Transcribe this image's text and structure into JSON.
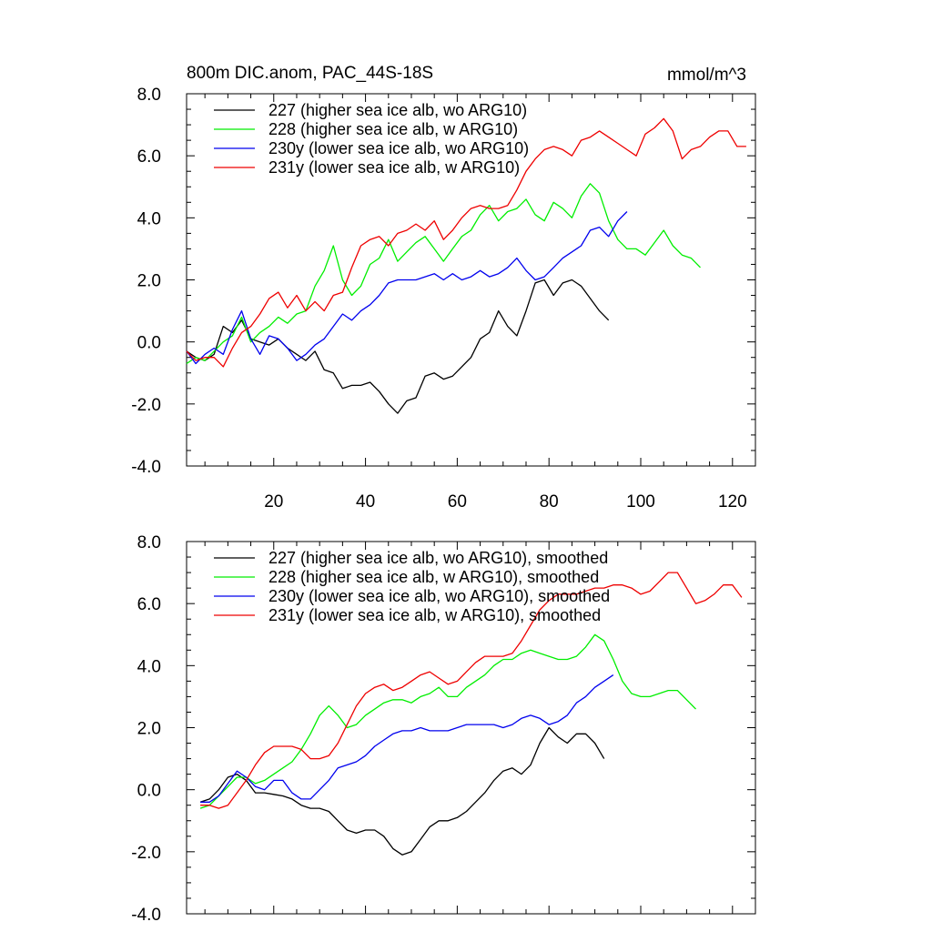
{
  "chart_data": [
    {
      "type": "line",
      "title": "800m DIC.anom, PAC_44S-18S",
      "units": "mmol/m^3",
      "ylim": [
        -4.0,
        8.0
      ],
      "xlim": [
        1,
        125
      ],
      "yticks": [
        -4.0,
        -2.0,
        0.0,
        2.0,
        4.0,
        6.0,
        8.0
      ],
      "ytick_labels": [
        "-4.0",
        "-2.0",
        "0.0",
        "2.0",
        "4.0",
        "6.0",
        "8.0"
      ],
      "xticks": [
        20,
        40,
        60,
        80,
        100,
        120
      ],
      "xtick_labels": [
        "20",
        "40",
        "60",
        "80",
        "100",
        "120"
      ],
      "legend_position": "top-left",
      "series": [
        {
          "name": "227 (higher sea ice alb, wo ARG10)",
          "color": "#000000",
          "x": [
            1,
            3,
            5,
            7,
            9,
            11,
            13,
            15,
            17,
            19,
            21,
            23,
            25,
            27,
            29,
            31,
            33,
            35,
            37,
            39,
            41,
            43,
            45,
            47,
            49,
            51,
            53,
            55,
            57,
            59,
            61,
            63,
            65,
            67,
            69,
            71,
            73,
            75,
            77,
            79,
            81,
            83,
            85,
            87,
            89,
            91,
            93
          ],
          "y": [
            -0.3,
            -0.5,
            -0.6,
            -0.4,
            0.5,
            0.3,
            0.7,
            0.1,
            0.0,
            -0.1,
            0.1,
            -0.2,
            -0.4,
            -0.6,
            -0.3,
            -0.9,
            -1.0,
            -1.5,
            -1.4,
            -1.4,
            -1.3,
            -1.6,
            -2.0,
            -2.3,
            -1.9,
            -1.8,
            -1.1,
            -1.0,
            -1.2,
            -1.1,
            -0.8,
            -0.5,
            0.1,
            0.3,
            1.0,
            0.5,
            0.2,
            1.0,
            1.9,
            2.0,
            1.5,
            1.9,
            2.0,
            1.8,
            1.4,
            1.0,
            0.7
          ]
        },
        {
          "name": "228 (higher sea ice alb, w ARG10)",
          "color": "#00ee00",
          "x": [
            1,
            3,
            5,
            7,
            9,
            11,
            13,
            15,
            17,
            19,
            21,
            23,
            25,
            27,
            29,
            31,
            33,
            35,
            37,
            39,
            41,
            43,
            45,
            47,
            49,
            51,
            53,
            55,
            57,
            59,
            61,
            63,
            65,
            67,
            69,
            71,
            73,
            75,
            77,
            79,
            81,
            83,
            85,
            87,
            89,
            91,
            93,
            95,
            97,
            99,
            101,
            103,
            105,
            107,
            109,
            111,
            113
          ],
          "y": [
            -0.7,
            -0.5,
            -0.6,
            -0.3,
            0.0,
            0.2,
            0.8,
            0.0,
            0.3,
            0.5,
            0.8,
            0.6,
            0.9,
            1.0,
            1.8,
            2.3,
            3.1,
            2.0,
            1.5,
            1.8,
            2.5,
            2.7,
            3.3,
            2.6,
            2.9,
            3.2,
            3.4,
            3.0,
            2.6,
            3.0,
            3.4,
            3.6,
            4.1,
            4.4,
            3.9,
            4.2,
            4.3,
            4.6,
            4.1,
            3.9,
            4.5,
            4.3,
            4.0,
            4.7,
            5.1,
            4.8,
            3.9,
            3.3,
            3.0,
            3.0,
            2.8,
            3.2,
            3.6,
            3.1,
            2.8,
            2.7,
            2.4
          ]
        },
        {
          "name": "230y (lower sea ice alb, wo ARG10)",
          "color": "#0000ee",
          "x": [
            1,
            3,
            5,
            7,
            9,
            11,
            13,
            15,
            17,
            19,
            21,
            23,
            25,
            27,
            29,
            31,
            33,
            35,
            37,
            39,
            41,
            43,
            45,
            47,
            49,
            51,
            53,
            55,
            57,
            59,
            61,
            63,
            65,
            67,
            69,
            71,
            73,
            75,
            77,
            79,
            81,
            83,
            85,
            87,
            89,
            91,
            93,
            95,
            97
          ],
          "y": [
            -0.3,
            -0.7,
            -0.4,
            -0.2,
            -0.4,
            0.4,
            1.0,
            0.1,
            -0.4,
            0.2,
            0.1,
            -0.2,
            -0.6,
            -0.4,
            -0.1,
            0.1,
            0.5,
            0.9,
            0.7,
            1.0,
            1.2,
            1.5,
            1.9,
            2.0,
            2.0,
            2.0,
            2.1,
            2.2,
            2.0,
            2.2,
            2.0,
            2.1,
            2.3,
            2.1,
            2.2,
            2.4,
            2.7,
            2.3,
            2.0,
            2.1,
            2.4,
            2.7,
            2.9,
            3.1,
            3.6,
            3.7,
            3.4,
            3.9,
            4.2
          ]
        },
        {
          "name": "231y (lower sea ice alb, w ARG10)",
          "color": "#ee0000",
          "x": [
            1,
            3,
            5,
            7,
            9,
            11,
            13,
            15,
            17,
            19,
            21,
            23,
            25,
            27,
            29,
            31,
            33,
            35,
            37,
            39,
            41,
            43,
            45,
            47,
            49,
            51,
            53,
            55,
            57,
            59,
            61,
            63,
            65,
            67,
            69,
            71,
            73,
            75,
            77,
            79,
            81,
            83,
            85,
            87,
            89,
            91,
            93,
            95,
            97,
            99,
            101,
            103,
            105,
            107,
            109,
            111,
            113,
            115,
            117,
            119,
            121,
            123
          ],
          "y": [
            -0.3,
            -0.6,
            -0.5,
            -0.5,
            -0.8,
            -0.2,
            0.3,
            0.5,
            0.9,
            1.4,
            1.6,
            1.1,
            1.5,
            1.0,
            1.3,
            1.0,
            1.5,
            1.6,
            2.4,
            3.1,
            3.3,
            3.4,
            3.1,
            3.5,
            3.6,
            3.8,
            3.6,
            3.9,
            3.3,
            3.6,
            4.0,
            4.3,
            4.4,
            4.3,
            4.3,
            4.4,
            4.9,
            5.5,
            5.9,
            6.2,
            6.3,
            6.2,
            6.0,
            6.5,
            6.6,
            6.8,
            6.6,
            6.4,
            6.2,
            6.0,
            6.7,
            6.9,
            7.2,
            6.8,
            5.9,
            6.2,
            6.3,
            6.6,
            6.8,
            6.8,
            6.3,
            6.3
          ]
        }
      ]
    },
    {
      "type": "line",
      "ylim": [
        -4.0,
        8.0
      ],
      "xlim": [
        1,
        125
      ],
      "yticks": [
        -4.0,
        -2.0,
        0.0,
        2.0,
        4.0,
        6.0,
        8.0
      ],
      "ytick_labels": [
        "-4.0",
        "-2.0",
        "0.0",
        "2.0",
        "4.0",
        "6.0",
        "8.0"
      ],
      "xticks": [
        20,
        40,
        60,
        80,
        100,
        120
      ],
      "legend_position": "top-left",
      "series": [
        {
          "name": "227 (higher sea ice alb, wo ARG10), smoothed",
          "color": "#000000",
          "x": [
            4,
            6,
            8,
            10,
            12,
            14,
            16,
            18,
            20,
            22,
            24,
            26,
            28,
            30,
            32,
            34,
            36,
            38,
            40,
            42,
            44,
            46,
            48,
            50,
            52,
            54,
            56,
            58,
            60,
            62,
            64,
            66,
            68,
            70,
            72,
            74,
            76,
            78,
            80,
            82,
            84,
            86,
            88,
            90,
            92
          ],
          "y": [
            -0.4,
            -0.3,
            0.0,
            0.4,
            0.5,
            0.3,
            -0.1,
            -0.1,
            -0.15,
            -0.2,
            -0.3,
            -0.5,
            -0.6,
            -0.6,
            -0.7,
            -1.0,
            -1.3,
            -1.4,
            -1.3,
            -1.3,
            -1.5,
            -1.9,
            -2.1,
            -2.0,
            -1.6,
            -1.2,
            -1.0,
            -1.0,
            -0.9,
            -0.7,
            -0.4,
            -0.1,
            0.3,
            0.6,
            0.7,
            0.5,
            0.8,
            1.5,
            2.0,
            1.7,
            1.5,
            1.8,
            1.8,
            1.5,
            1.0
          ]
        },
        {
          "name": "228 (higher sea ice alb, w ARG10), smoothed",
          "color": "#00ee00",
          "x": [
            4,
            6,
            8,
            10,
            12,
            14,
            16,
            18,
            20,
            22,
            24,
            26,
            28,
            30,
            32,
            34,
            36,
            38,
            40,
            42,
            44,
            46,
            48,
            50,
            52,
            54,
            56,
            58,
            60,
            62,
            64,
            66,
            68,
            70,
            72,
            74,
            76,
            78,
            80,
            82,
            84,
            86,
            88,
            90,
            92,
            94,
            96,
            98,
            100,
            102,
            104,
            106,
            108,
            110,
            112
          ],
          "y": [
            -0.6,
            -0.5,
            -0.2,
            0.1,
            0.4,
            0.4,
            0.2,
            0.3,
            0.5,
            0.7,
            0.9,
            1.3,
            1.8,
            2.4,
            2.7,
            2.4,
            2.0,
            2.1,
            2.4,
            2.6,
            2.8,
            2.9,
            2.9,
            2.8,
            3.0,
            3.1,
            3.3,
            3.0,
            3.0,
            3.3,
            3.5,
            3.7,
            4.0,
            4.2,
            4.2,
            4.4,
            4.5,
            4.4,
            4.3,
            4.2,
            4.2,
            4.3,
            4.6,
            5.0,
            4.8,
            4.2,
            3.5,
            3.1,
            3.0,
            3.0,
            3.1,
            3.2,
            3.2,
            2.9,
            2.6
          ]
        },
        {
          "name": "230y (lower sea ice alb, wo ARG10), smoothed",
          "color": "#0000ee",
          "x": [
            4,
            6,
            8,
            10,
            12,
            14,
            16,
            18,
            20,
            22,
            24,
            26,
            28,
            30,
            32,
            34,
            36,
            38,
            40,
            42,
            44,
            46,
            48,
            50,
            52,
            54,
            56,
            58,
            60,
            62,
            64,
            66,
            68,
            70,
            72,
            74,
            76,
            78,
            80,
            82,
            84,
            86,
            88,
            90,
            92,
            94
          ],
          "y": [
            -0.4,
            -0.4,
            -0.2,
            0.2,
            0.6,
            0.4,
            0.1,
            0.0,
            0.3,
            0.3,
            -0.1,
            -0.3,
            -0.3,
            0.0,
            0.3,
            0.7,
            0.8,
            0.9,
            1.1,
            1.4,
            1.6,
            1.8,
            1.9,
            1.9,
            2.0,
            1.9,
            1.9,
            1.9,
            2.0,
            2.1,
            2.1,
            2.1,
            2.1,
            2.0,
            2.1,
            2.3,
            2.4,
            2.3,
            2.1,
            2.2,
            2.4,
            2.8,
            3.0,
            3.3,
            3.5,
            3.7
          ]
        },
        {
          "name": "231y (lower sea ice alb, w ARG10), smoothed",
          "color": "#ee0000",
          "x": [
            4,
            6,
            8,
            10,
            12,
            14,
            16,
            18,
            20,
            22,
            24,
            26,
            28,
            30,
            32,
            34,
            36,
            38,
            40,
            42,
            44,
            46,
            48,
            50,
            52,
            54,
            56,
            58,
            60,
            62,
            64,
            66,
            68,
            70,
            72,
            74,
            76,
            78,
            80,
            82,
            84,
            86,
            88,
            90,
            92,
            94,
            96,
            98,
            100,
            102,
            104,
            106,
            108,
            110,
            112,
            114,
            116,
            118,
            120,
            122
          ],
          "y": [
            -0.5,
            -0.5,
            -0.6,
            -0.5,
            -0.1,
            0.3,
            0.8,
            1.2,
            1.4,
            1.4,
            1.4,
            1.3,
            1.0,
            1.0,
            1.1,
            1.5,
            2.1,
            2.7,
            3.1,
            3.3,
            3.4,
            3.2,
            3.3,
            3.5,
            3.7,
            3.8,
            3.6,
            3.4,
            3.5,
            3.8,
            4.1,
            4.3,
            4.3,
            4.3,
            4.4,
            4.8,
            5.3,
            5.8,
            6.1,
            6.3,
            6.3,
            6.3,
            6.4,
            6.5,
            6.5,
            6.6,
            6.6,
            6.5,
            6.3,
            6.4,
            6.7,
            7.0,
            7.0,
            6.5,
            6.0,
            6.1,
            6.3,
            6.6,
            6.6,
            6.2
          ]
        }
      ]
    }
  ]
}
